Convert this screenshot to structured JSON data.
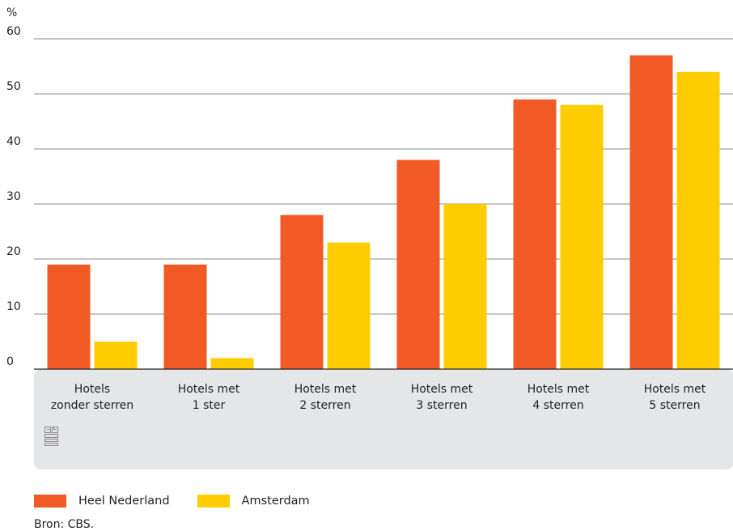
{
  "chart_data": {
    "type": "bar",
    "y_unit": "%",
    "y_ticks": [
      "0",
      "10",
      "20",
      "30",
      "40",
      "50",
      "60"
    ],
    "ylim": [
      0,
      60
    ],
    "grid": true,
    "categories": [
      [
        "Hotels",
        "zonder sterren"
      ],
      [
        "Hotels met",
        "1 ster"
      ],
      [
        "Hotels met",
        "2 sterren"
      ],
      [
        "Hotels met",
        "3 sterren"
      ],
      [
        "Hotels met",
        "4 sterren"
      ],
      [
        "Hotels met",
        "5 sterren"
      ]
    ],
    "series": [
      {
        "name": "Heel Nederland",
        "color": "#f15a24",
        "values": [
          19,
          19,
          28,
          38,
          49,
          57
        ]
      },
      {
        "name": "Amsterdam",
        "color": "#ffcc00",
        "values": [
          5,
          2,
          23,
          30,
          48,
          54
        ]
      }
    ],
    "legend_position": "bottom-left"
  },
  "logo": {
    "icon": "cbs-logo-icon"
  },
  "source": "Bron: CBS."
}
